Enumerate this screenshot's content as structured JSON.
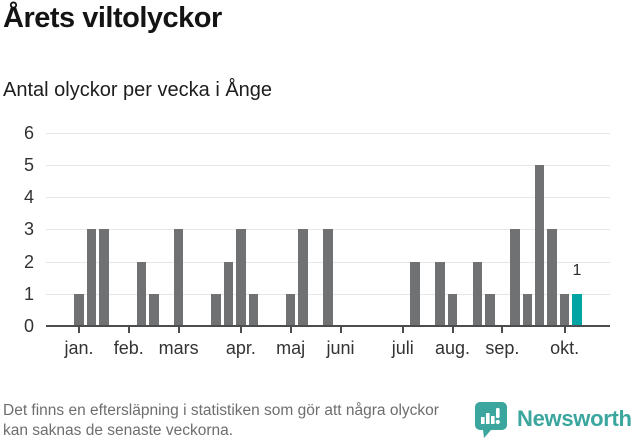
{
  "chart_data": {
    "type": "bar",
    "title": "Årets viltolyckor",
    "subtitle": "Antal olyckor per vecka i Ånge",
    "xlabel": "",
    "ylabel": "",
    "ylim": [
      0,
      6
    ],
    "y_ticks": [
      0,
      1,
      2,
      3,
      4,
      5,
      6
    ],
    "grid": true,
    "legend_position": "none",
    "weeks": [
      0,
      1,
      3,
      3,
      0,
      0,
      2,
      1,
      0,
      3,
      0,
      0,
      1,
      2,
      3,
      1,
      0,
      0,
      1,
      3,
      0,
      3,
      0,
      0,
      0,
      0,
      0,
      0,
      2,
      0,
      2,
      1,
      0,
      2,
      1,
      0,
      3,
      1,
      5,
      3,
      1,
      1,
      0,
      0
    ],
    "months": [
      {
        "label": "jan.",
        "week_index": 1
      },
      {
        "label": "feb.",
        "week_index": 5
      },
      {
        "label": "mars",
        "week_index": 9
      },
      {
        "label": "apr.",
        "week_index": 14
      },
      {
        "label": "maj",
        "week_index": 18
      },
      {
        "label": "juni",
        "week_index": 22
      },
      {
        "label": "juli",
        "week_index": 27
      },
      {
        "label": "aug.",
        "week_index": 31
      },
      {
        "label": "sep.",
        "week_index": 35
      },
      {
        "label": "okt.",
        "week_index": 40
      }
    ],
    "highlight": {
      "week_index": 41,
      "value": 1,
      "value_label": "1"
    },
    "colors": {
      "bar": "#6f7173",
      "highlight": "#00A4A3",
      "grid": "#e7e7e7",
      "axis": "#4d4d4d",
      "tick_label": "#333333"
    }
  },
  "footer": {
    "note": "Det finns en eftersläpning i statistiken som gör att några olyckor kan saknas de senaste veckorna.",
    "brand": "Newsworthy",
    "brand_color": "#3BA69E"
  }
}
